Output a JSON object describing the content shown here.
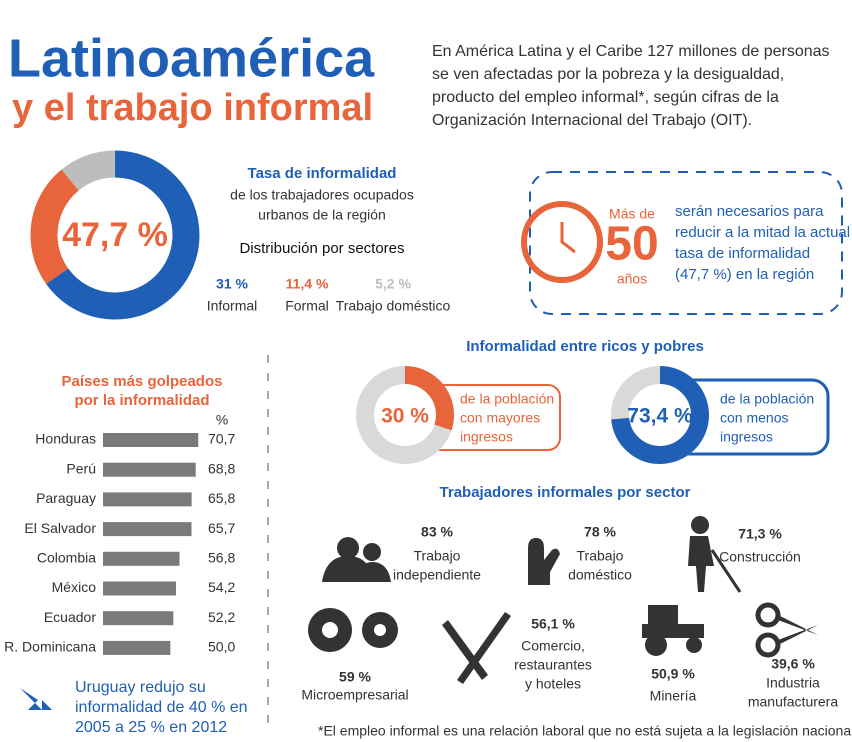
{
  "header": {
    "title": [
      "Latinoamérica",
      "y el trabajo informal"
    ],
    "intro": [
      "En América Latina y el Caribe 127 millones de personas",
      "se ven afectadas por la pobreza y la desigualdad,",
      "producto del empleo informal*, según cifras de la",
      "Organización Internacional del Trabajo (OIT)."
    ]
  },
  "rate": {
    "center_label": "47,7 %",
    "title": "Tasa de informalidad",
    "subtitle": [
      "de los trabajadores ocupados",
      "urbanos de la región"
    ],
    "dist_title": "Distribución por sectores",
    "sectors": [
      {
        "label": "31 %",
        "value": 31,
        "name": "Informal",
        "color": "#1f5fb5"
      },
      {
        "label": "11,4 %",
        "value": 11.4,
        "name": "Formal",
        "color": "#e8643a"
      },
      {
        "label": "5,2 %",
        "value": 5.2,
        "name": "Trabajo doméstico",
        "color": "#bdbdbd"
      }
    ]
  },
  "years": {
    "pre": "Más de",
    "number": "50",
    "post": "años",
    "text": [
      "serán necesarios para",
      "reducir a la mitad la actual",
      "tasa de informalidad",
      "(47,7 %) en la región"
    ]
  },
  "rich_poor": {
    "title": "Informalidad entre ricos y pobres",
    "items": [
      {
        "label": "30 %",
        "value": 30,
        "text": [
          "de la población",
          "con mayores",
          "ingresos"
        ],
        "color": "#e8643a"
      },
      {
        "label": "73,4 %",
        "value": 73.4,
        "text": [
          "de la población",
          "con menos",
          "ingresos"
        ],
        "color": "#1f5fb5"
      }
    ]
  },
  "sectors": {
    "title": "Trabajadores informales por sector",
    "items": [
      {
        "label": "83 %",
        "name": [
          "Trabajo",
          "independiente"
        ]
      },
      {
        "label": "78 %",
        "name": [
          "Trabajo",
          "doméstico"
        ]
      },
      {
        "label": "71,3 %",
        "name": [
          "Construcción"
        ]
      },
      {
        "label": "59 %",
        "name": [
          "Microempresarial"
        ]
      },
      {
        "label": "56,1 %",
        "name": [
          "Comercio,",
          "restaurantes",
          "y hoteles"
        ]
      },
      {
        "label": "50,9 %",
        "name": [
          "Minería"
        ]
      },
      {
        "label": "39,6 %",
        "name": [
          "Industria",
          "manufacturera"
        ]
      }
    ]
  },
  "uruguay": [
    "Uruguay redujo su",
    "informalidad de 40 % en",
    "2005 a 25 % en 2012"
  ],
  "footnote": "*El empleo informal es una relación laboral que no está sujeta a la legislación nacional",
  "chart_data": {
    "type": "bar",
    "title": [
      "Países más golpeados",
      "por la informalidad"
    ],
    "unit": "%",
    "categories": [
      "Honduras",
      "Perú",
      "Paraguay",
      "El Salvador",
      "Colombia",
      "México",
      "Ecuador",
      "R. Dominicana"
    ],
    "values": [
      70.7,
      68.8,
      65.8,
      65.7,
      56.8,
      54.2,
      52.2,
      50.0
    ],
    "value_labels": [
      "70,7",
      "68,8",
      "65,8",
      "65,7",
      "56,8",
      "54,2",
      "52,2",
      "50,0"
    ],
    "xlim": [
      0,
      72
    ],
    "color": "#7a7a7a"
  }
}
